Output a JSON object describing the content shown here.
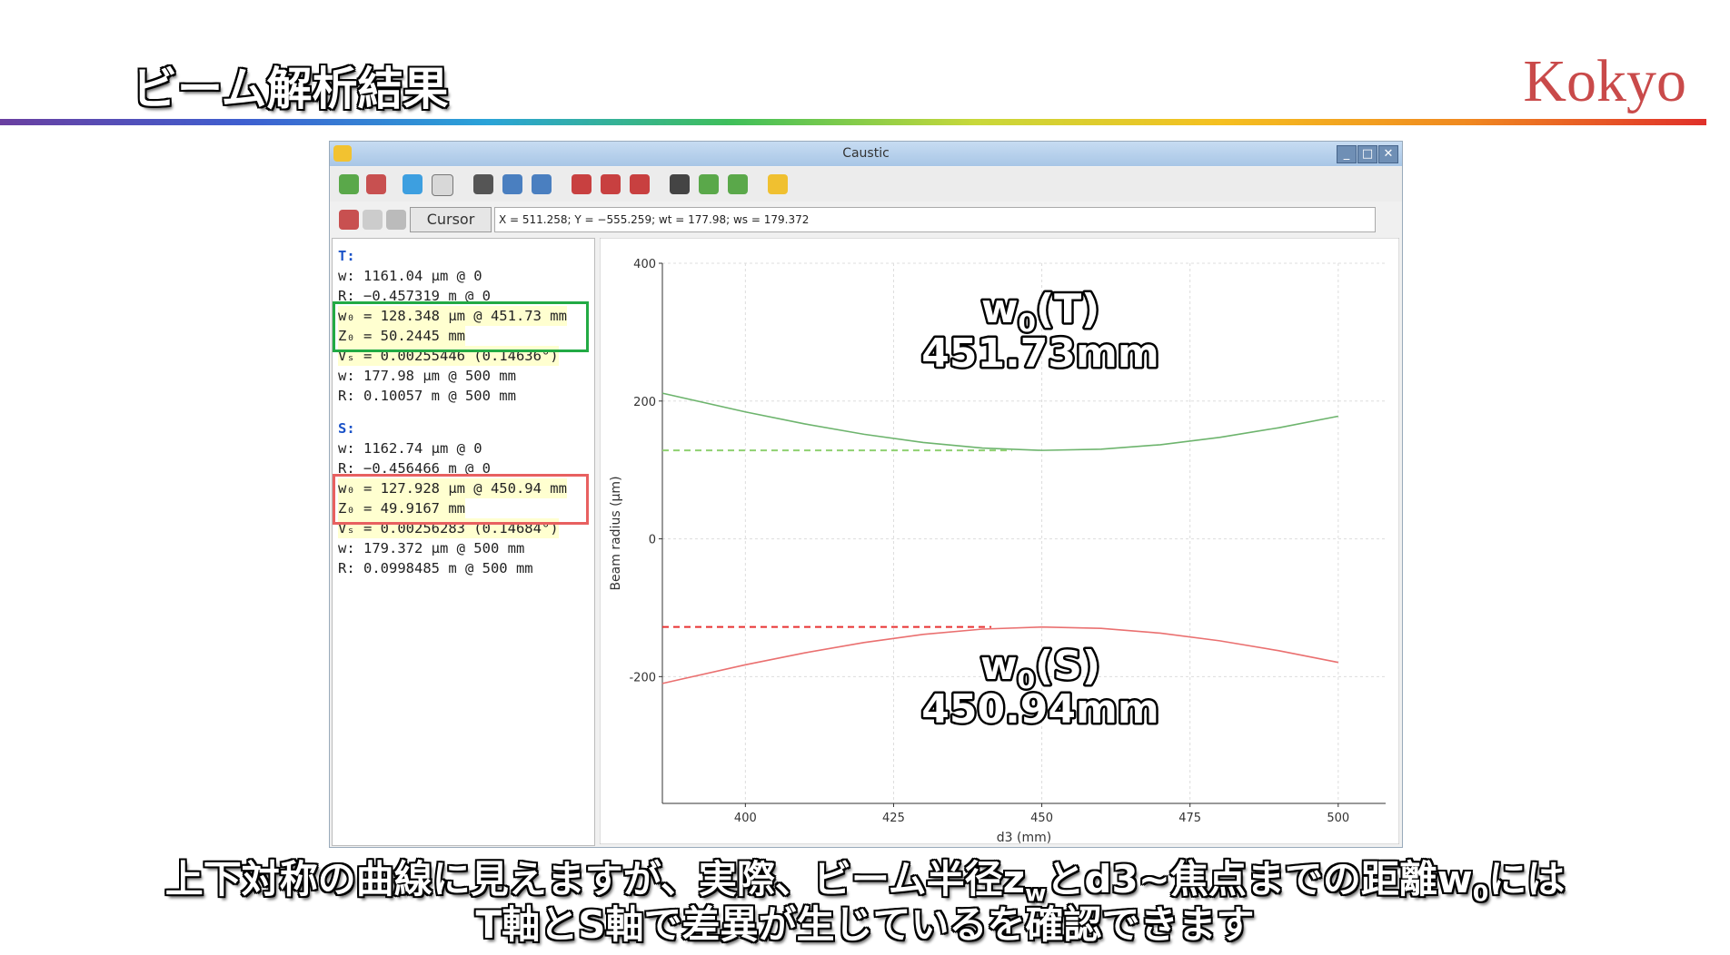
{
  "header": {
    "title": "ビーム解析結果",
    "logo": "Kokyo"
  },
  "window": {
    "title": "Caustic",
    "cursor_mode": "Cursor",
    "cursor_readout": "X = 511.258; Y = −555.259; wt = 177.98; ws = 179.372"
  },
  "panel": {
    "blocks": [
      {
        "label": "T:",
        "lines": [
          "w: 1161.04 µm @ 0",
          "R: −0.457319 m @ 0",
          "w₀ = 128.348 µm @ 451.73 mm",
          "Z₀ = 50.2445 mm",
          "Vₛ = 0.00255446 (0.14636°)",
          "w: 177.98 µm @ 500 mm",
          "R: 0.10057 m @ 500 mm"
        ]
      },
      {
        "label": "S:",
        "lines": [
          "w: 1162.74 µm @ 0",
          "R: −0.456466 m @ 0",
          "w₀ = 127.928 µm @ 450.94 mm",
          "Z₀ = 49.9167 mm",
          "Vₛ = 0.00256283 (0.14684°)",
          "w: 179.372 µm @ 500 mm",
          "R: 0.0998485 m @ 500 mm"
        ]
      }
    ]
  },
  "chart_data": {
    "type": "line",
    "x_label": "d3 (mm)",
    "y_label": "Beam radius (µm)",
    "xlim": [
      386,
      508
    ],
    "ylim": [
      -384,
      400
    ],
    "xticks": [
      400,
      425,
      450,
      475,
      500
    ],
    "yticks": [
      -200,
      0,
      200,
      400
    ],
    "grid": true,
    "series": [
      {
        "color": "#6db46d",
        "x": [
          386,
          400,
          410,
          420,
          430,
          440,
          450,
          460,
          470,
          480,
          490,
          500
        ],
        "values": [
          211.4,
          184.2,
          166.9,
          151.8,
          139.8,
          131.8,
          128.4,
          130.1,
          136.6,
          147.3,
          161.3,
          177.98
        ]
      },
      {
        "color": "#ea7070",
        "x": [
          386,
          400,
          410,
          420,
          430,
          440,
          450,
          460,
          470,
          480,
          490,
          500
        ],
        "values": [
          -209.9,
          -182.8,
          -165.5,
          -150.5,
          -138.7,
          -131.0,
          -128.0,
          -130.0,
          -136.9,
          -148.0,
          -162.4,
          -179.37
        ]
      },
      {
        "color": "#8fd070",
        "dashed": true,
        "x": [
          386,
          445
        ],
        "values": [
          128.348,
          128.348
        ]
      },
      {
        "color": "#e83232",
        "dashed": true,
        "x": [
          386,
          441.5
        ],
        "values": [
          -127.928,
          -127.928
        ]
      }
    ],
    "annotations": [
      {
        "parts": [
          "w",
          "0",
          "(T)"
        ],
        "value": "451.73mm"
      },
      {
        "parts": [
          "w",
          "0",
          "(S)"
        ],
        "value": "450.94mm"
      }
    ]
  },
  "caption": {
    "line1": [
      "上下対称の曲線に見えますが、実際、ビーム半径z",
      "w",
      "とd3~焦点までの距離w",
      "0",
      "には"
    ],
    "line2": "T軸とS軸で差異が生じているを確認できます"
  }
}
